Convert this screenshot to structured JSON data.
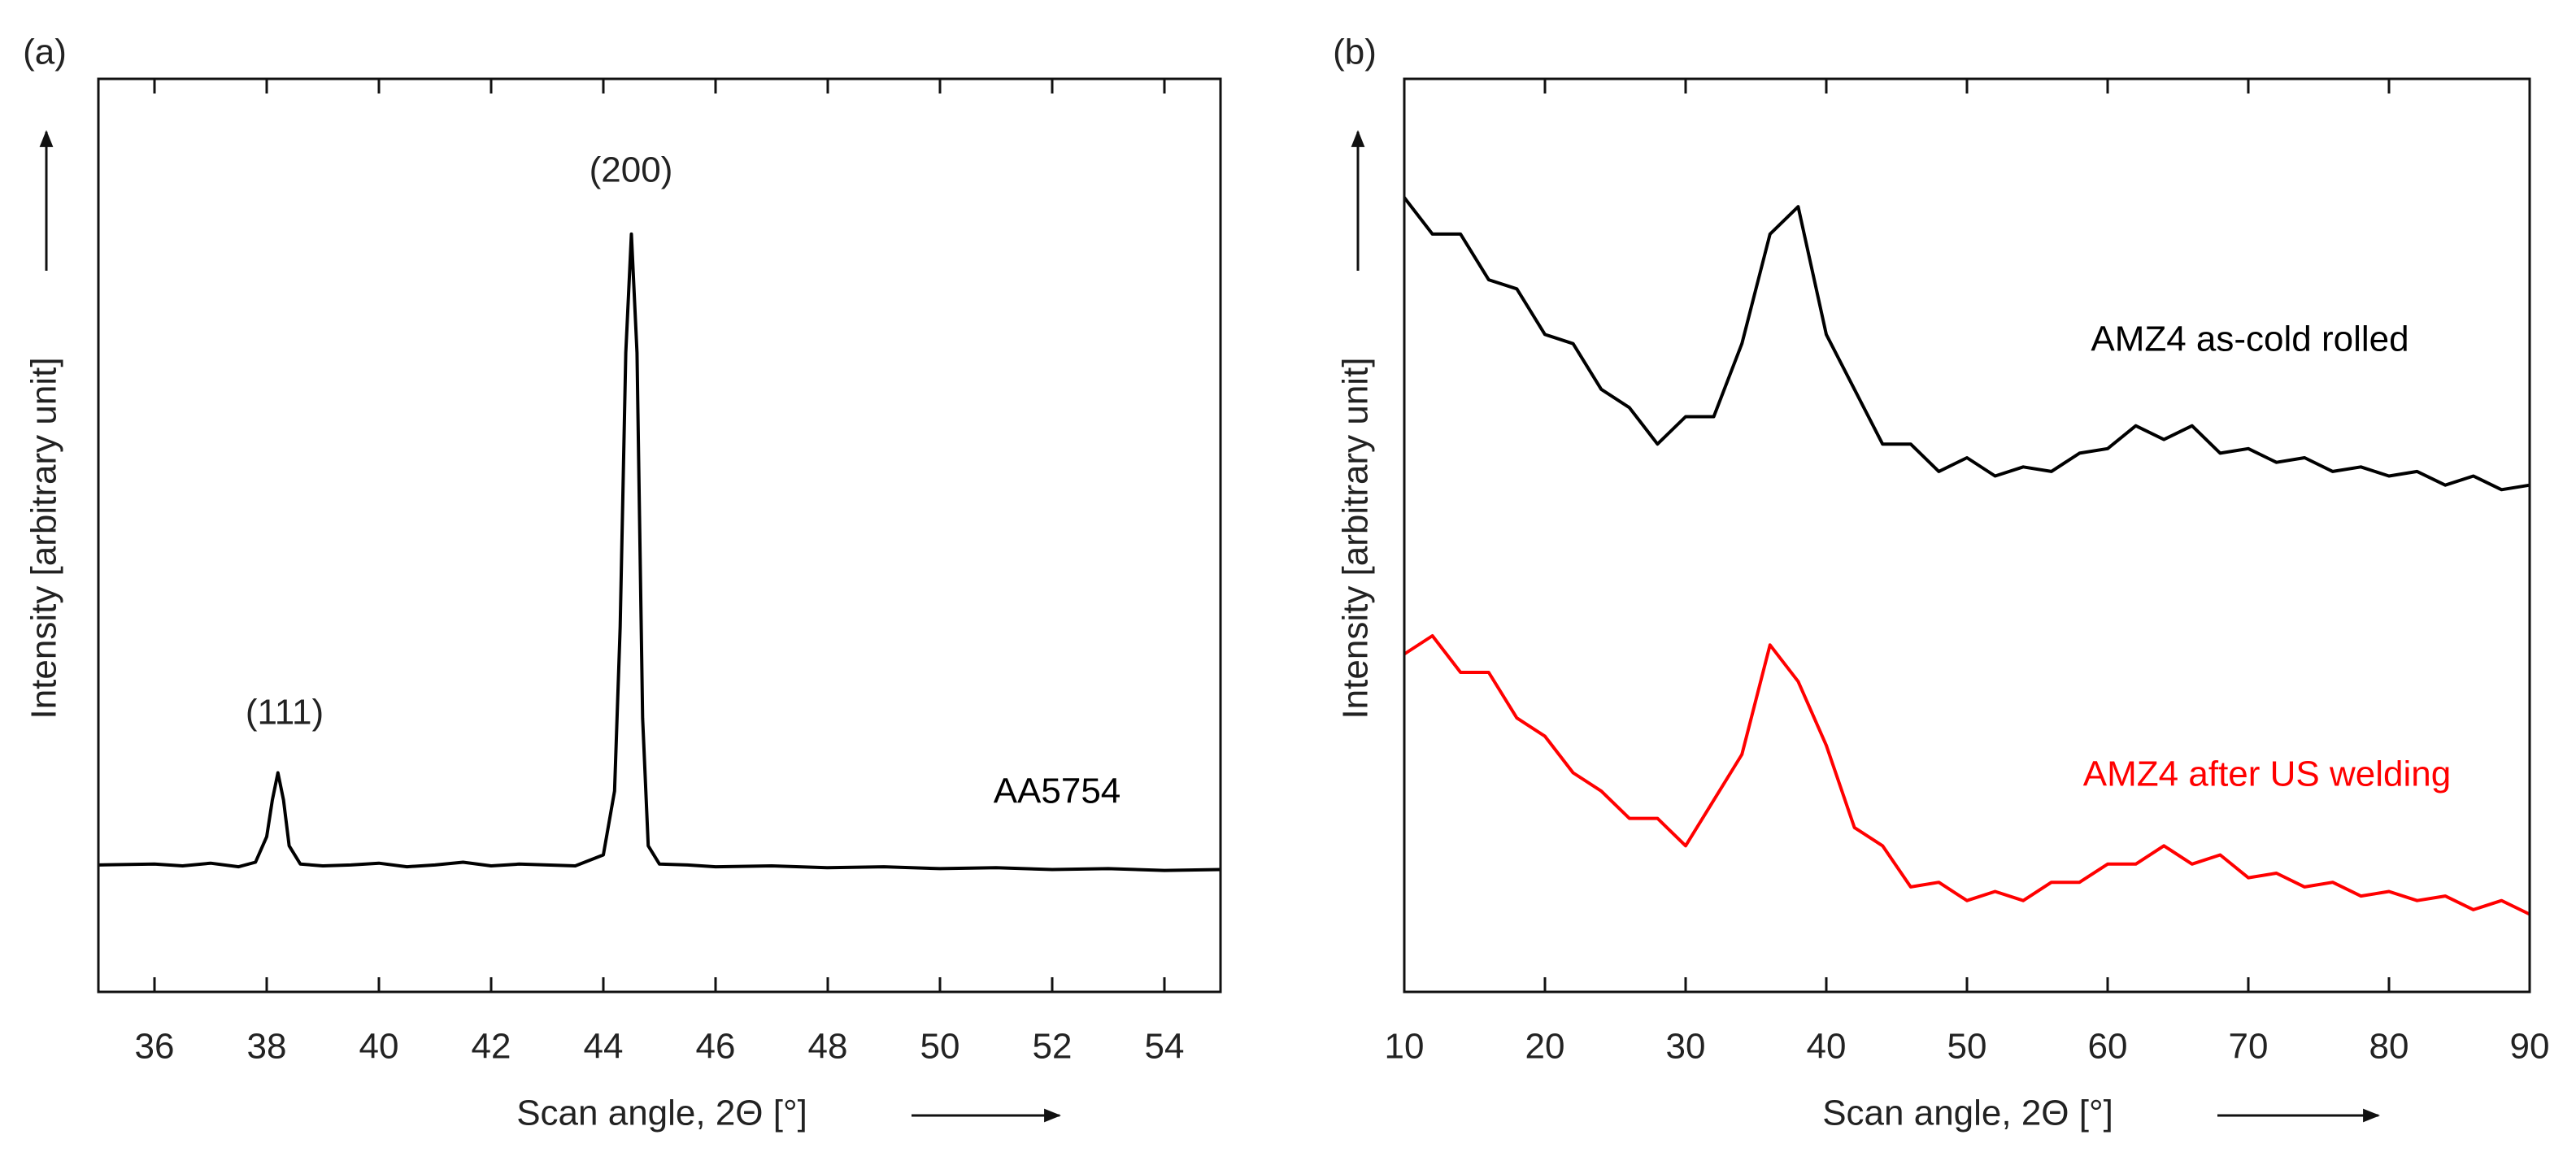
{
  "chart_data": [
    {
      "type": "line",
      "panel_label": "(a)",
      "x_label": "Scan angle, 2Θ [°]",
      "y_label": "Intensity [arbitrary unit]",
      "x": [
        35,
        36,
        36.5,
        37,
        37.5,
        37.8,
        38.0,
        38.1,
        38.2,
        38.3,
        38.4,
        38.6,
        39,
        39.5,
        40,
        40.5,
        41,
        41.5,
        42,
        42.5,
        43,
        43.5,
        44.0,
        44.2,
        44.3,
        44.4,
        44.5,
        44.6,
        44.7,
        44.8,
        45,
        45.5,
        46,
        47,
        48,
        49,
        50,
        51,
        52,
        53,
        54,
        55
      ],
      "series": [
        {
          "name": "AA5754",
          "color": "#000000",
          "values": [
            13.9,
            14.0,
            13.8,
            14.1,
            13.7,
            14.2,
            17,
            21,
            24,
            21,
            16,
            14,
            13.8,
            13.9,
            14.1,
            13.7,
            13.9,
            14.2,
            13.8,
            14.0,
            13.9,
            13.8,
            15,
            22,
            40,
            70,
            83,
            70,
            30,
            16,
            14,
            13.9,
            13.7,
            13.8,
            13.6,
            13.7,
            13.5,
            13.6,
            13.4,
            13.5,
            13.3,
            13.4
          ]
        }
      ],
      "annotations": [
        "(111)",
        "(200)"
      ],
      "xlim": [
        35,
        55
      ],
      "xticks": [
        36,
        38,
        40,
        42,
        44,
        46,
        48,
        50,
        52,
        54
      ],
      "ylim": [
        0,
        100
      ]
    },
    {
      "type": "line",
      "panel_label": "(b)",
      "x_label": "Scan angle, 2Θ [°]",
      "y_label": "Intensity [arbitrary unit]",
      "x": [
        10,
        12,
        14,
        16,
        18,
        20,
        22,
        24,
        26,
        28,
        30,
        32,
        34,
        36,
        38,
        40,
        42,
        44,
        46,
        48,
        50,
        52,
        54,
        56,
        58,
        60,
        62,
        64,
        66,
        68,
        70,
        72,
        74,
        76,
        78,
        80,
        82,
        84,
        86,
        88,
        90
      ],
      "series": [
        {
          "name": "AMZ4 as-cold rolled",
          "color": "#000000",
          "values": [
            87,
            83,
            83,
            78,
            77,
            72,
            71,
            66,
            64,
            60,
            63,
            63,
            71,
            83,
            86,
            72,
            66,
            60,
            60,
            57,
            58.5,
            56.5,
            57.5,
            57,
            59,
            59.5,
            62,
            60.5,
            62,
            59,
            59.5,
            58,
            58.5,
            57,
            57.5,
            56.5,
            57,
            55.5,
            56.5,
            55,
            55.5
          ]
        },
        {
          "name": "AMZ4 after US welding",
          "color": "#ff0000",
          "values": [
            37,
            39,
            35,
            35,
            30,
            28,
            24,
            22,
            19,
            19,
            16,
            21,
            26,
            38,
            34,
            27,
            18,
            16,
            11.5,
            12,
            10,
            11,
            10,
            12,
            12,
            14,
            14,
            16,
            14,
            15,
            12.5,
            13,
            11.5,
            12,
            10.5,
            11,
            10,
            10.5,
            9,
            10,
            8.5
          ]
        }
      ],
      "xlim": [
        10,
        90
      ],
      "xticks": [
        10,
        20,
        30,
        40,
        50,
        60,
        70,
        80,
        90
      ],
      "ylim": [
        0,
        100
      ]
    }
  ]
}
